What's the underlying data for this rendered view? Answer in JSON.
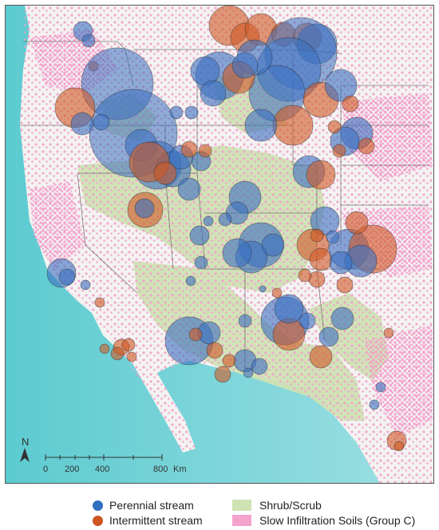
{
  "colors": {
    "ocean_light": "#c9ecef",
    "ocean_teal": "#5ccbd0",
    "land": "#f2f2f2",
    "shrub": "#cfe3b4",
    "soil": "#f49cc9",
    "perennial": "#3b6fc0",
    "intermittent": "#cf5a25"
  },
  "north_arrow": {
    "label": "N"
  },
  "scale_bar": {
    "ticks": [
      "0",
      "200",
      "400",
      "800"
    ],
    "unit": "Km"
  },
  "legend": {
    "items": [
      {
        "label": "Perennial stream",
        "symbol": "circle",
        "color": "#2f6fc0"
      },
      {
        "label": "Intermittent stream",
        "symbol": "circle",
        "color": "#cc5521"
      },
      {
        "label": "Shrub/Scrub",
        "symbol": "patch",
        "color": "#cfe3b4"
      },
      {
        "label": "Slow Infiltration Soils (Group C)",
        "symbol": "patch",
        "color": "#f4a3cd"
      }
    ]
  }
}
